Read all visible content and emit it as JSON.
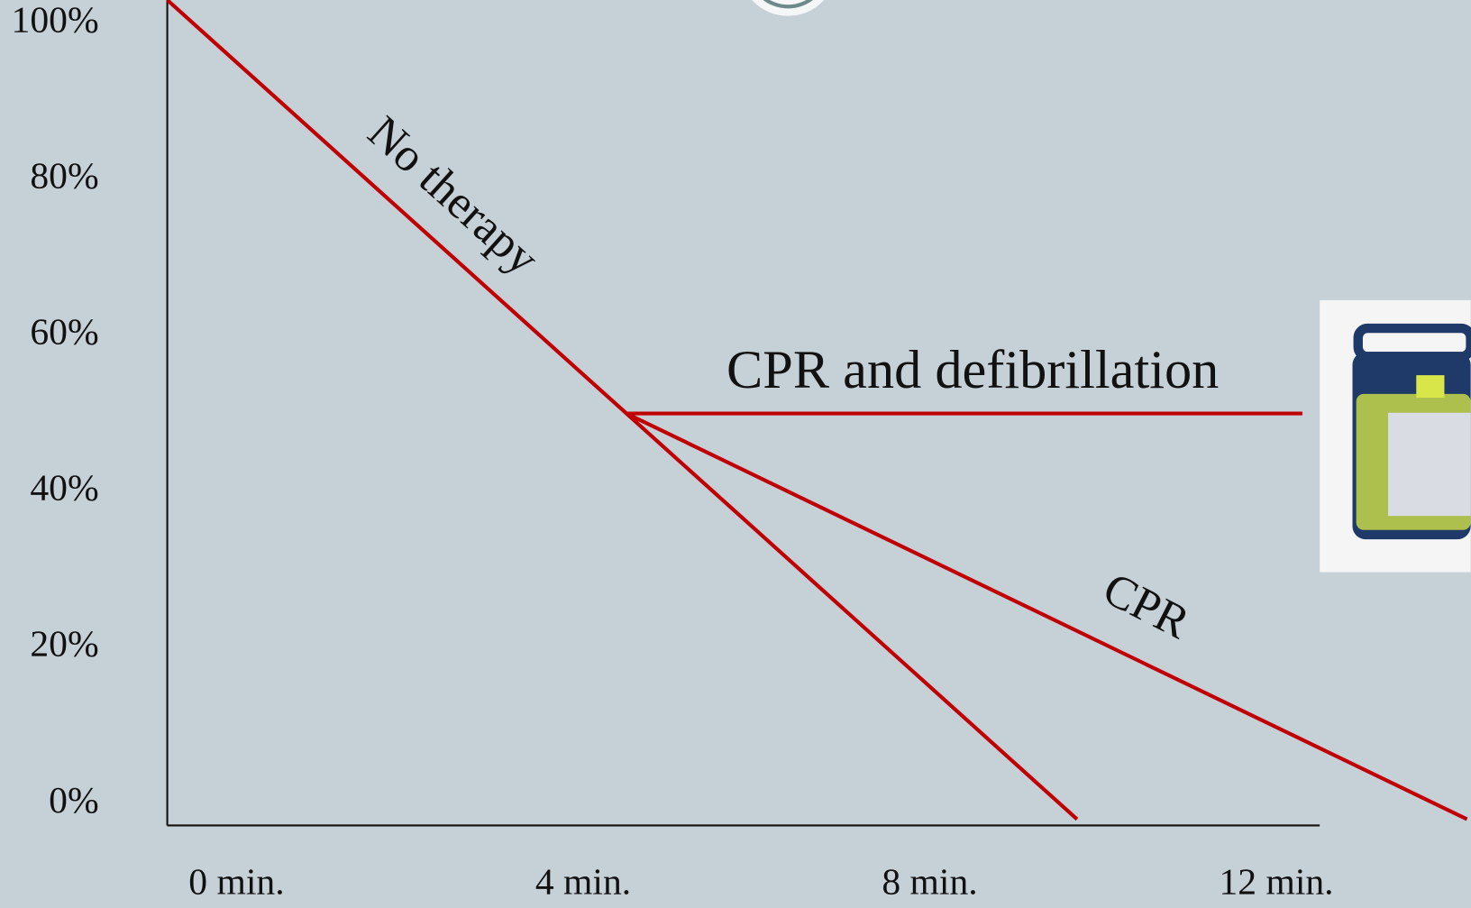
{
  "chart_data": {
    "type": "line",
    "xlim": [
      -0.8,
      12.5
    ],
    "ylim": [
      -2.8,
      103
    ],
    "xticks": [
      {
        "value": 0,
        "label": "0 min."
      },
      {
        "value": 4,
        "label": "4 min."
      },
      {
        "value": 8,
        "label": "8 min."
      },
      {
        "value": 12,
        "label": "12 min."
      }
    ],
    "yticks": [
      {
        "value": 0,
        "label": "0%"
      },
      {
        "value": 20,
        "label": "20%"
      },
      {
        "value": 40,
        "label": "40%"
      },
      {
        "value": 60,
        "label": "60%"
      },
      {
        "value": 80,
        "label": "80%"
      },
      {
        "value": 100,
        "label": "100%"
      }
    ],
    "series": [
      {
        "name": "No therapy",
        "color": "#c00000",
        "x": [
          -0.8,
          4.5,
          9.7
        ],
        "values": [
          103,
          50,
          -2
        ]
      },
      {
        "name": "CPR and defibrillation",
        "color": "#c00000",
        "x": [
          4.5,
          12.3
        ],
        "values": [
          50,
          50
        ]
      },
      {
        "name": "CPR",
        "color": "#c00000",
        "x": [
          4.5,
          14.2
        ],
        "values": [
          50,
          -2
        ]
      }
    ]
  }
}
